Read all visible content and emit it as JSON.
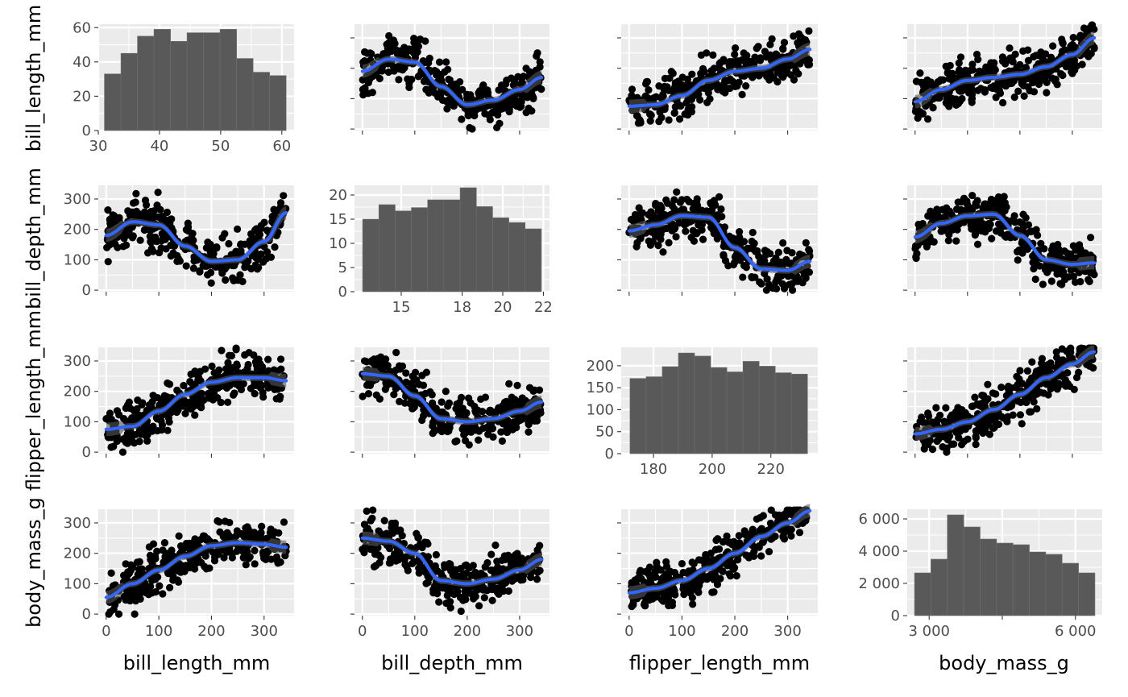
{
  "chart_data": {
    "type": "scatter",
    "variables": [
      "bill_length_mm",
      "bill_depth_mm",
      "flipper_length_mm",
      "body_mass_g"
    ],
    "x_titles": [
      "bill_length_mm",
      "bill_depth_mm",
      "flipper_length_mm",
      "body_mass_g"
    ],
    "y_titles": [
      "bill_length_mm",
      "bill_depth_mm",
      "flipper_length_mm",
      "body_mass_g"
    ],
    "grid": true,
    "histograms": [
      {
        "variable": "bill_length_mm",
        "bin_edges": [
          31,
          33.7,
          36.4,
          39.1,
          41.8,
          44.5,
          47.2,
          49.9,
          52.6,
          55.3,
          58,
          60.7
        ],
        "counts": [
          33,
          45,
          55,
          59,
          52,
          57,
          57,
          59,
          42,
          34,
          32
        ],
        "xlim": [
          30,
          62
        ],
        "ylim": [
          0,
          62
        ],
        "x_ticks": [
          30,
          40,
          50,
          60
        ],
        "x_tick_labels": [
          "30",
          "40",
          "50",
          "60"
        ],
        "y_ticks": [
          0,
          20,
          40,
          60
        ],
        "y_tick_labels": [
          "0",
          "20",
          "40",
          "60"
        ]
      },
      {
        "variable": "bill_depth_mm",
        "bin_edges": [
          13.1,
          13.9,
          14.7,
          15.5,
          16.3,
          17.1,
          17.9,
          18.7,
          19.5,
          20.3,
          21.1,
          21.9
        ],
        "counts": [
          15,
          18,
          16.7,
          17.4,
          19,
          19,
          21.5,
          17.6,
          15.3,
          14.3,
          13
        ],
        "xlim": [
          12.7,
          22.3
        ],
        "ylim": [
          0,
          22
        ],
        "x_ticks": [
          15,
          18,
          20,
          22
        ],
        "x_tick_labels": [
          "15",
          "18",
          "20",
          "22"
        ],
        "y_ticks": [
          0,
          5,
          10,
          15,
          20
        ],
        "y_tick_labels": [
          "0",
          "5",
          "10",
          "15",
          "20"
        ]
      },
      {
        "variable": "flipper_length_mm",
        "bin_edges": [
          172,
          177.5,
          183,
          188.5,
          194,
          199.5,
          205,
          210.5,
          216,
          221.5,
          227,
          232.5
        ],
        "counts": [
          171,
          175,
          198,
          229,
          222,
          196,
          186,
          210,
          199,
          184,
          181
        ],
        "xlim": [
          169,
          236
        ],
        "ylim": [
          0,
          242
        ],
        "x_ticks": [
          180,
          200,
          220
        ],
        "x_tick_labels": [
          "180",
          "200",
          "220"
        ],
        "y_ticks": [
          0,
          50,
          100,
          150,
          200
        ],
        "y_tick_labels": [
          "0",
          "50",
          "100",
          "150",
          "200"
        ]
      },
      {
        "variable": "body_mass_g",
        "bin_edges": [
          2700,
          3036,
          3373,
          3709,
          4045,
          4382,
          4718,
          5055,
          5391,
          5727,
          6064,
          6400
        ],
        "counts": [
          2650,
          3500,
          6250,
          5500,
          4750,
          4500,
          4400,
          3950,
          3800,
          3250,
          2650
        ],
        "xlim": [
          2550,
          6550
        ],
        "ylim": [
          0,
          6600
        ],
        "x_ticks": [
          3000,
          4500,
          6000
        ],
        "x_tick_labels": [
          "3 000",
          "",
          "6 000"
        ],
        "y_ticks": [
          0,
          2000,
          4000,
          6000
        ],
        "y_tick_labels": [
          "0",
          "2 000",
          "4 000",
          "6 000"
        ]
      }
    ],
    "scatter_axes": {
      "x_ticks": [
        0,
        100,
        200,
        300
      ],
      "x_tick_labels": [
        "0",
        "100",
        "200",
        "300"
      ],
      "y_ticks": [
        0,
        100,
        200,
        300
      ],
      "y_tick_labels": [
        "0",
        "100",
        "200",
        "300"
      ],
      "xlim": [
        -15,
        357
      ],
      "ylim": [
        -5,
        345
      ]
    },
    "smooth_curves": [
      {
        "row": 0,
        "col": 1,
        "x": [
          0,
          50,
          100,
          150,
          200,
          250,
          300,
          342
        ],
        "y": [
          190,
          230,
          220,
          140,
          80,
          95,
          130,
          170
        ]
      },
      {
        "row": 0,
        "col": 2,
        "x": [
          0,
          50,
          100,
          150,
          200,
          250,
          300,
          342
        ],
        "y": [
          75,
          80,
          110,
          160,
          190,
          200,
          230,
          262
        ]
      },
      {
        "row": 0,
        "col": 3,
        "x": [
          0,
          50,
          100,
          150,
          200,
          250,
          300,
          342
        ],
        "y": [
          90,
          130,
          160,
          170,
          180,
          205,
          245,
          300
        ]
      },
      {
        "row": 1,
        "col": 0,
        "x": [
          0,
          50,
          100,
          150,
          200,
          250,
          300,
          342
        ],
        "y": [
          180,
          225,
          215,
          145,
          95,
          100,
          160,
          255
        ]
      },
      {
        "row": 1,
        "col": 2,
        "x": [
          0,
          50,
          100,
          150,
          200,
          250,
          300,
          342
        ],
        "y": [
          195,
          215,
          245,
          240,
          140,
          70,
          65,
          95
        ]
      },
      {
        "row": 1,
        "col": 3,
        "x": [
          0,
          50,
          100,
          150,
          200,
          250,
          300,
          342
        ],
        "y": [
          175,
          220,
          245,
          250,
          180,
          100,
          85,
          90
        ]
      },
      {
        "row": 2,
        "col": 0,
        "x": [
          0,
          50,
          100,
          150,
          200,
          250,
          300,
          342
        ],
        "y": [
          75,
          85,
          135,
          190,
          230,
          245,
          245,
          235
        ]
      },
      {
        "row": 2,
        "col": 1,
        "x": [
          0,
          50,
          100,
          150,
          200,
          250,
          300,
          342
        ],
        "y": [
          258,
          250,
          185,
          110,
          100,
          110,
          135,
          165
        ]
      },
      {
        "row": 2,
        "col": 3,
        "x": [
          0,
          50,
          100,
          150,
          200,
          250,
          300,
          342
        ],
        "y": [
          60,
          75,
          100,
          140,
          190,
          245,
          290,
          330
        ]
      },
      {
        "row": 3,
        "col": 0,
        "x": [
          0,
          50,
          100,
          150,
          200,
          250,
          300,
          342
        ],
        "y": [
          55,
          100,
          145,
          190,
          225,
          235,
          230,
          220
        ]
      },
      {
        "row": 3,
        "col": 1,
        "x": [
          0,
          50,
          100,
          150,
          200,
          250,
          300,
          342
        ],
        "y": [
          250,
          240,
          200,
          110,
          100,
          115,
          145,
          180
        ]
      },
      {
        "row": 3,
        "col": 2,
        "x": [
          0,
          50,
          100,
          150,
          200,
          250,
          300,
          342
        ],
        "y": [
          70,
          85,
          110,
          150,
          200,
          255,
          300,
          340
        ]
      }
    ]
  }
}
